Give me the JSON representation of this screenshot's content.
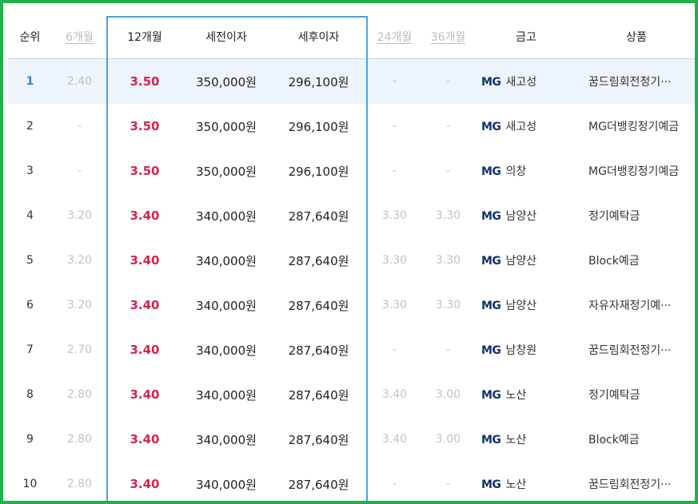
{
  "header": {
    "rank": "순위",
    "m6": "6개월",
    "m12": "12개월",
    "pretax": "세전이자",
    "aftertax": "세후이자",
    "m24": "24개월",
    "m36": "36개월",
    "bank": "금고",
    "product": "상품"
  },
  "mg_label": "MG",
  "accent_colors": {
    "frame": "#21b14b",
    "highlight": "#4aa3e0",
    "rate": "#d6234e",
    "rank_top": "#3a84c5",
    "mg_logo": "#10346b"
  },
  "rows": [
    {
      "rank": "1",
      "m6": "2.40",
      "m12": "3.50",
      "pretax": "350,000원",
      "aftertax": "296,100원",
      "m24": "-",
      "m36": "-",
      "bank": "새고성",
      "product": "꿈드림회전정기···"
    },
    {
      "rank": "2",
      "m6": "-",
      "m12": "3.50",
      "pretax": "350,000원",
      "aftertax": "296,100원",
      "m24": "-",
      "m36": "-",
      "bank": "새고성",
      "product": "MG더뱅킹정기예금"
    },
    {
      "rank": "3",
      "m6": "-",
      "m12": "3.50",
      "pretax": "350,000원",
      "aftertax": "296,100원",
      "m24": "-",
      "m36": "-",
      "bank": "의창",
      "product": "MG더뱅킹정기예금"
    },
    {
      "rank": "4",
      "m6": "3.20",
      "m12": "3.40",
      "pretax": "340,000원",
      "aftertax": "287,640원",
      "m24": "3.30",
      "m36": "3.30",
      "bank": "남양산",
      "product": "정기예탁금"
    },
    {
      "rank": "5",
      "m6": "3.20",
      "m12": "3.40",
      "pretax": "340,000원",
      "aftertax": "287,640원",
      "m24": "3.30",
      "m36": "3.30",
      "bank": "남양산",
      "product": "Block예금"
    },
    {
      "rank": "6",
      "m6": "3.20",
      "m12": "3.40",
      "pretax": "340,000원",
      "aftertax": "287,640원",
      "m24": "3.30",
      "m36": "3.30",
      "bank": "남양산",
      "product": "자유자재정기예···"
    },
    {
      "rank": "7",
      "m6": "2.70",
      "m12": "3.40",
      "pretax": "340,000원",
      "aftertax": "287,640원",
      "m24": "-",
      "m36": "-",
      "bank": "남창원",
      "product": "꿈드림회전정기···"
    },
    {
      "rank": "8",
      "m6": "2.80",
      "m12": "3.40",
      "pretax": "340,000원",
      "aftertax": "287,640원",
      "m24": "3.40",
      "m36": "3.00",
      "bank": "노산",
      "product": "정기예탁금"
    },
    {
      "rank": "9",
      "m6": "2.80",
      "m12": "3.40",
      "pretax": "340,000원",
      "aftertax": "287,640원",
      "m24": "3.40",
      "m36": "3.00",
      "bank": "노산",
      "product": "Block예금"
    },
    {
      "rank": "10",
      "m6": "2.80",
      "m12": "3.40",
      "pretax": "340,000원",
      "aftertax": "287,640원",
      "m24": "-",
      "m36": "-",
      "bank": "노산",
      "product": "꿈드림회전정기···"
    }
  ]
}
